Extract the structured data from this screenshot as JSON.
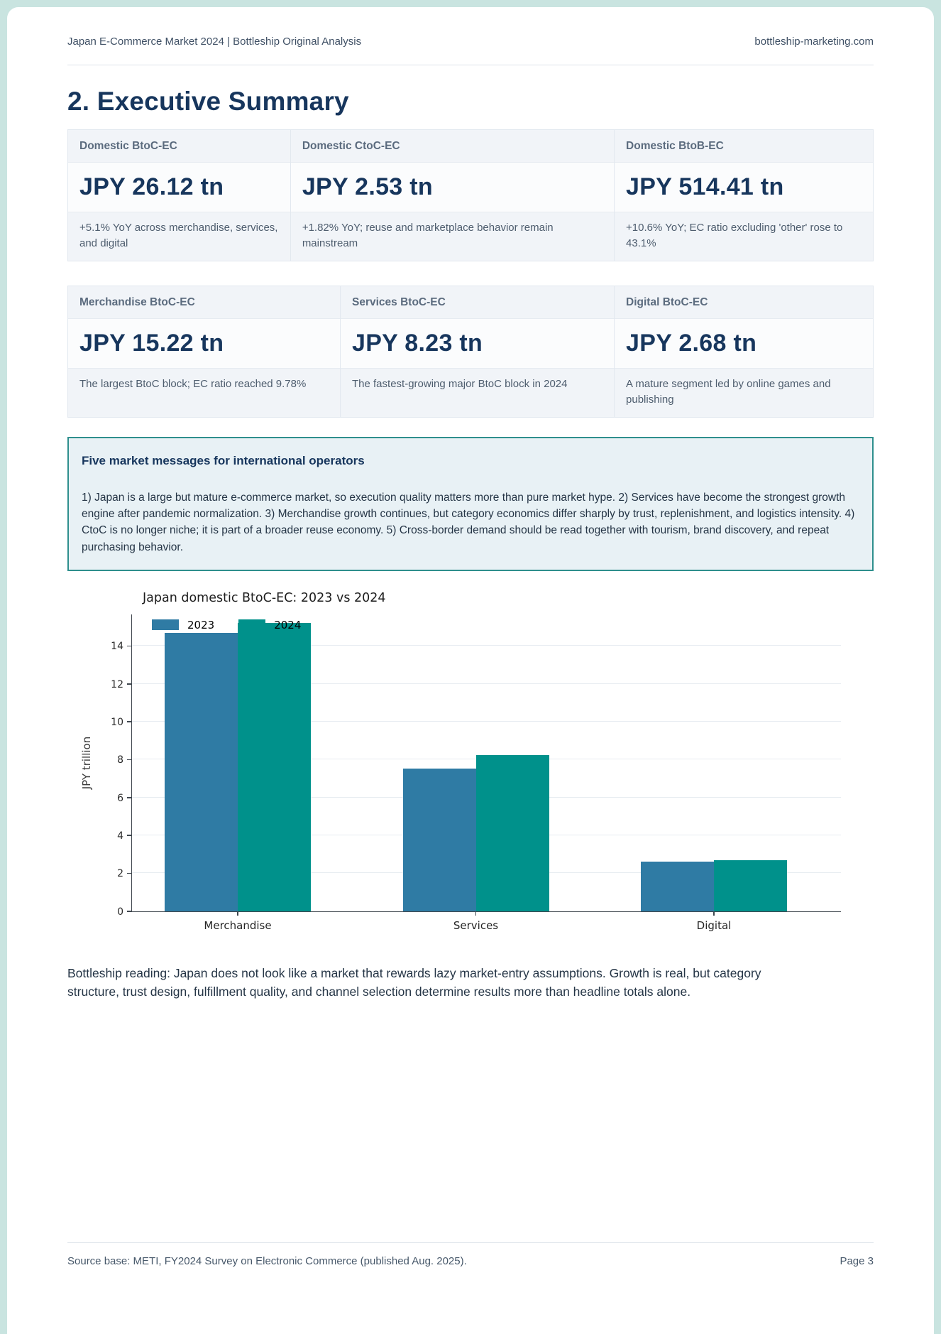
{
  "header": {
    "title": "Japan E-Commerce Market 2024 | Bottleship Original Analysis",
    "site": "bottleship-marketing.com"
  },
  "section": {
    "title": "2. Executive Summary"
  },
  "kpi_rows": [
    {
      "cards": [
        {
          "label": "Domestic BtoC-EC",
          "value": "JPY 26.12 tn",
          "note": "+5.1% YoY across merchandise, services, and digital"
        },
        {
          "label": "Domestic CtoC-EC",
          "value": "JPY 2.53 tn",
          "note": "+1.82% YoY; reuse and marketplace behavior remain mainstream"
        },
        {
          "label": "Domestic BtoB-EC",
          "value": "JPY 514.41 tn",
          "note": "+10.6% YoY; EC ratio excluding 'other' rose to 43.1%"
        }
      ]
    },
    {
      "cards": [
        {
          "label": "Merchandise BtoC-EC",
          "value": "JPY 15.22 tn",
          "note": "The largest BtoC block; EC ratio reached 9.78%"
        },
        {
          "label": "Services BtoC-EC",
          "value": "JPY 8.23 tn",
          "note": "The fastest-growing major BtoC block in 2024"
        },
        {
          "label": "Digital BtoC-EC",
          "value": "JPY 2.68 tn",
          "note": "A mature segment led by online games and publishing"
        }
      ]
    }
  ],
  "callout": {
    "title": "Five market messages for international operators",
    "body": "1) Japan is a large but mature e-commerce market, so execution quality matters more than pure market hype. 2) Services have become the strongest growth engine after pandemic normalization. 3) Merchandise growth continues, but category economics differ sharply by trust, replenishment, and logistics intensity. 4) CtoC is no longer niche; it is part of a broader reuse economy. 5) Cross-border demand should be read together with tourism, brand discovery, and repeat purchasing behavior.",
    "border_color": "#2e8f8d",
    "background_color": "#e8f1f5"
  },
  "chart_data": {
    "type": "bar",
    "title": "Japan domestic BtoC-EC: 2023 vs 2024",
    "categories": [
      "Merchandise",
      "Services",
      "Digital"
    ],
    "series": [
      {
        "name": "2023",
        "color": "#2f7ba4",
        "values": [
          14.68,
          7.53,
          2.63
        ]
      },
      {
        "name": "2024",
        "color": "#00918b",
        "values": [
          15.22,
          8.23,
          2.68
        ]
      }
    ],
    "xlabel": "",
    "ylabel": "JPY trillion",
    "yticks": [
      0,
      2,
      4,
      6,
      8,
      10,
      12,
      14
    ],
    "ylim": [
      0,
      15.7
    ],
    "grid": true,
    "legend_position": "upper-left"
  },
  "reading": "Bottleship reading: Japan does not look like a market that rewards lazy market-entry assumptions. Growth is real, but category structure, trust design, fulfillment quality, and channel selection determine results more than headline totals alone.",
  "footer": {
    "source": "Source base: METI, FY2024 Survey on Electronic Commerce (published Aug. 2025).",
    "page": "Page 3"
  },
  "colors": {
    "navy": "#17365d",
    "accent_teal": "#2e8f8d",
    "bar_2023": "#2f7ba4",
    "bar_2024": "#00918b"
  }
}
